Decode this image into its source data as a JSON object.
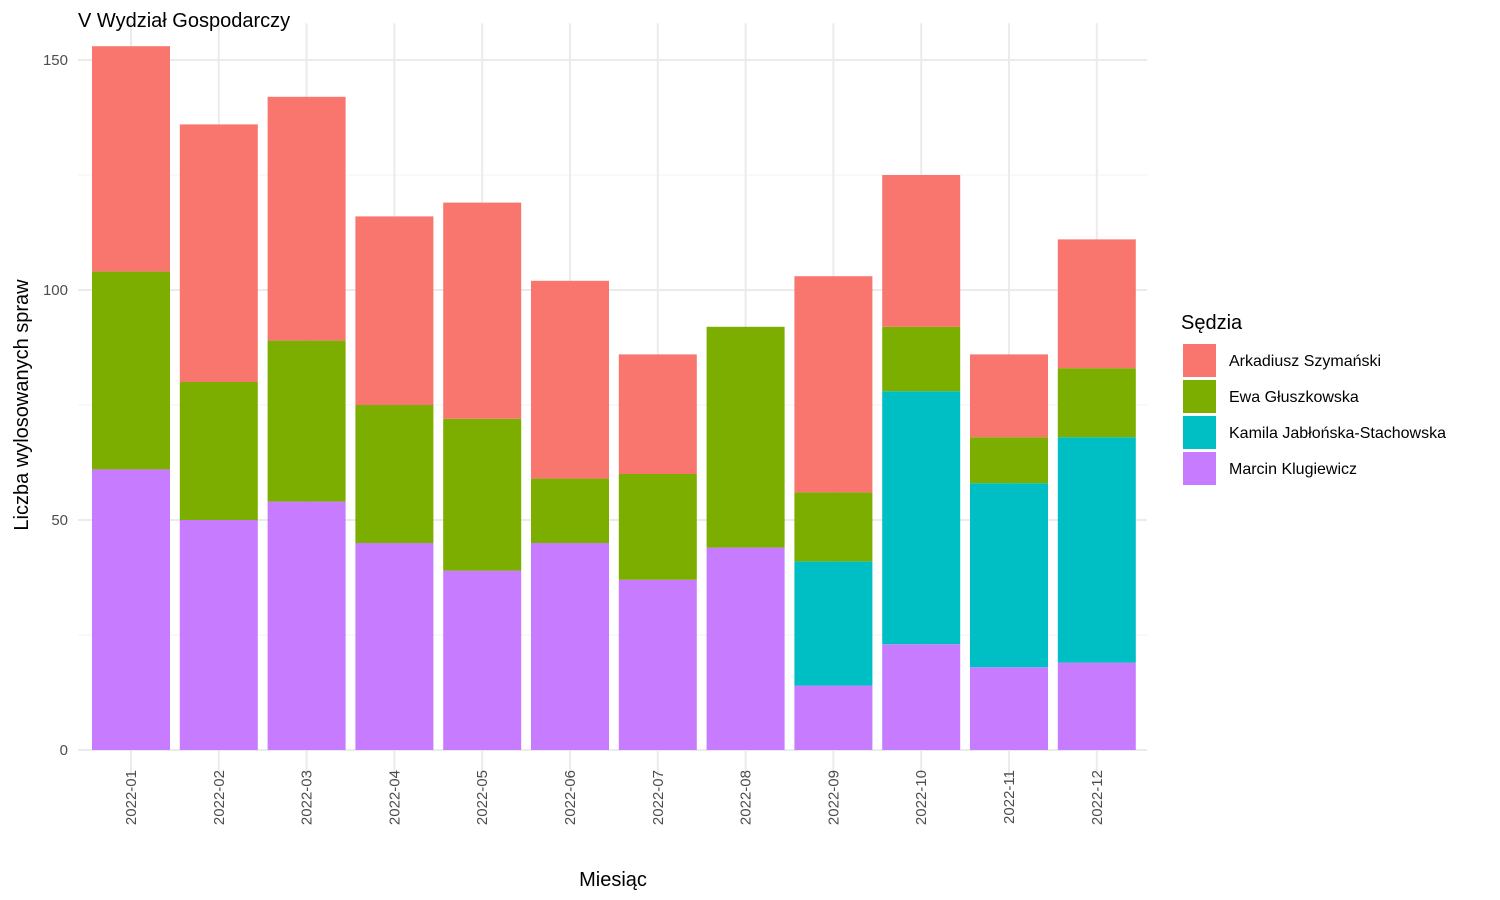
{
  "chart_data": {
    "type": "bar",
    "stacked": true,
    "title": "V Wydział Gospodarczy",
    "xlabel": "Miesiąc",
    "ylabel": "Liczba wylosowanych spraw",
    "ylim": [
      0,
      158
    ],
    "yticks": [
      0,
      50,
      100,
      150
    ],
    "grid": true,
    "legend_position": "right",
    "legend_title": "Sędzia",
    "categories": [
      "2022-01",
      "2022-02",
      "2022-03",
      "2022-04",
      "2022-05",
      "2022-06",
      "2022-07",
      "2022-08",
      "2022-09",
      "2022-10",
      "2022-11",
      "2022-12"
    ],
    "stack_order_bottom_to_top": [
      "Marcin Klugiewicz",
      "Kamila Jabłońska-Stachowska",
      "Ewa Głuszkowska",
      "Arkadiusz Szymański"
    ],
    "series": [
      {
        "name": "Arkadiusz Szymański",
        "color": "#F8766D",
        "values": [
          49,
          56,
          53,
          41,
          47,
          43,
          26,
          0,
          47,
          33,
          18,
          28
        ]
      },
      {
        "name": "Ewa Głuszkowska",
        "color": "#7CAE00",
        "values": [
          43,
          30,
          35,
          30,
          33,
          14,
          23,
          48,
          15,
          14,
          10,
          15
        ]
      },
      {
        "name": "Kamila Jabłońska-Stachowska",
        "color": "#00BFC4",
        "values": [
          0,
          0,
          0,
          0,
          0,
          0,
          0,
          0,
          27,
          55,
          40,
          49
        ]
      },
      {
        "name": "Marcin Klugiewicz",
        "color": "#C77CFF",
        "values": [
          61,
          50,
          54,
          45,
          39,
          45,
          37,
          44,
          14,
          23,
          18,
          19
        ]
      }
    ]
  }
}
